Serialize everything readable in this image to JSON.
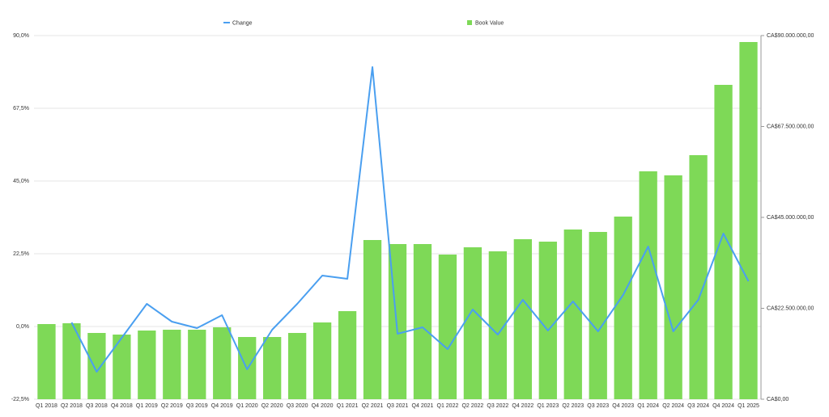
{
  "chart_data": {
    "type": "bar",
    "categories": [
      "Q1 2018",
      "Q2 2018",
      "Q3 2018",
      "Q4 2018",
      "Q1 2019",
      "Q2 2019",
      "Q3 2019",
      "Q4 2019",
      "Q1 2020",
      "Q2 2020",
      "Q3 2020",
      "Q4 2020",
      "Q1 2021",
      "Q2 2021",
      "Q3 2021",
      "Q4 2021",
      "Q1 2022",
      "Q2 2022",
      "Q3 2022",
      "Q4 2022",
      "Q1 2023",
      "Q2 2023",
      "Q3 2023",
      "Q4 2023",
      "Q1 2024",
      "Q2 2024",
      "Q3 2024",
      "Q4 2024",
      "Q1 2025"
    ],
    "series": [
      {
        "name": "Change",
        "type": "line",
        "color": "#4a9ff0",
        "axis": "y",
        "values": [
          null,
          1.25,
          -14,
          -3.5,
          7,
          1.5,
          -0.5,
          3.5,
          -13.25,
          -1,
          7,
          15.75,
          14.75,
          80.25,
          -2.25,
          -0.25,
          -7,
          5.25,
          -2.5,
          8.25,
          -1.25,
          7.75,
          -1.5,
          9.75,
          24.75,
          -1.5,
          8.25,
          28.75,
          14
        ]
      },
      {
        "name": "Book Value",
        "type": "bar",
        "color": "#7ed957",
        "axis": "y2",
        "values": [
          18600000,
          18800000,
          16400000,
          16000000,
          17000000,
          17200000,
          17200000,
          17800000,
          15400000,
          15400000,
          16400000,
          19000000,
          21800000,
          39400000,
          38400000,
          38400000,
          35800000,
          37600000,
          36600000,
          39600000,
          39000000,
          42000000,
          41400000,
          45200000,
          56400000,
          55400000,
          60400000,
          77800000,
          88400000
        ]
      }
    ],
    "ylim": [
      -22.5,
      90
    ],
    "yticks": [
      {
        "value": -22.5,
        "label": "-22,5%"
      },
      {
        "value": 0,
        "label": "0,0%"
      },
      {
        "value": 22.5,
        "label": "22,5%"
      },
      {
        "value": 45,
        "label": "45,0%"
      },
      {
        "value": 67.5,
        "label": "67,5%"
      },
      {
        "value": 90,
        "label": "90,0%"
      }
    ],
    "y2lim": [
      0,
      90000000
    ],
    "y2ticks": [
      {
        "value": 0,
        "label": "CA$0,00"
      },
      {
        "value": 22500000,
        "label": "CA$22.500.000,00"
      },
      {
        "value": 45000000,
        "label": "CA$45.000.000,00"
      },
      {
        "value": 67500000,
        "label": "CA$67.500.000,00"
      },
      {
        "value": 90000000,
        "label": "CA$90.000.000,00"
      }
    ],
    "grid": true
  }
}
